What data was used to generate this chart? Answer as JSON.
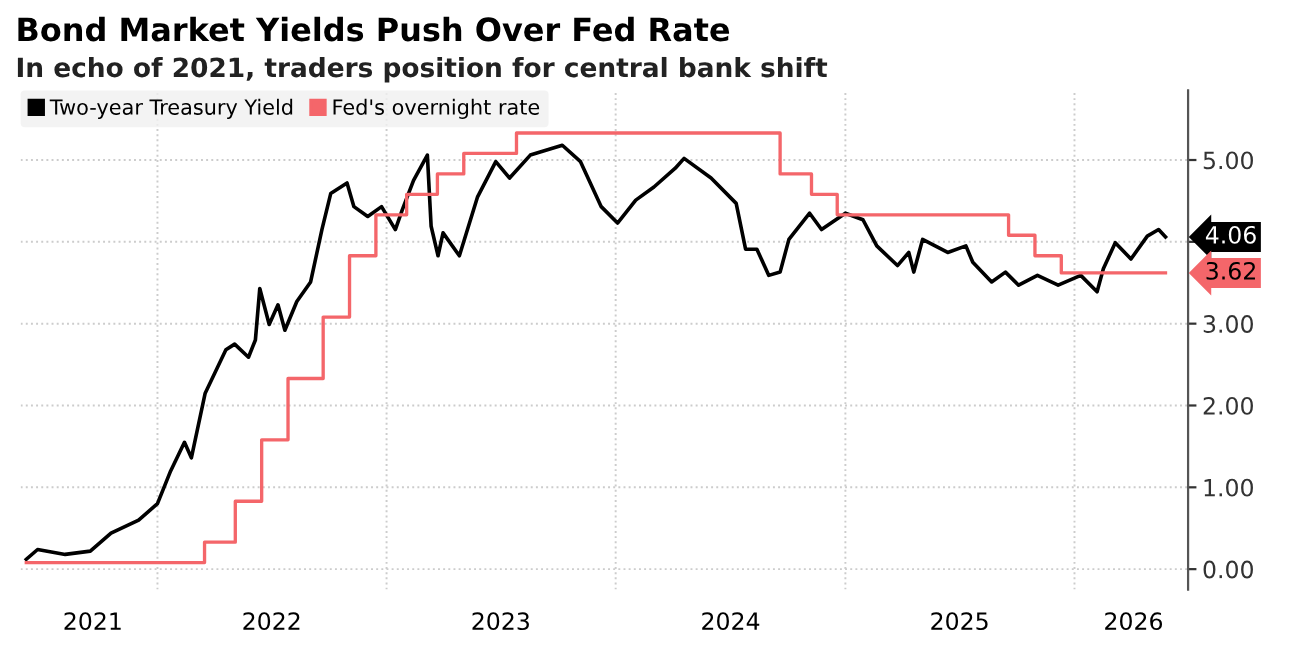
{
  "chart_data": {
    "type": "line",
    "title": "Bond Market Yields Push Over Fed Rate",
    "subtitle": "In echo of 2021, traders position for central bank shift",
    "legend": "top left",
    "grid": true,
    "line_style": "solid",
    "marker": "none",
    "xlim": [
      "2021-05-28",
      "2026-07-01"
    ],
    "xticks": [
      {
        "value": "2021-09-20",
        "label": "2021"
      },
      {
        "value": "2022-01-01",
        "label": null
      },
      {
        "value": "2022-07-02",
        "label": "2022"
      },
      {
        "value": "2023-01-01",
        "label": null
      },
      {
        "value": "2023-07-02",
        "label": "2023"
      },
      {
        "value": "2024-01-01",
        "label": null
      },
      {
        "value": "2024-07-02",
        "label": "2024"
      },
      {
        "value": "2025-01-01",
        "label": null
      },
      {
        "value": "2025-07-02",
        "label": "2025"
      },
      {
        "value": "2026-01-01",
        "label": null
      },
      {
        "value": "2026-04-05",
        "label": "2026"
      }
    ],
    "ylim": [
      -0.25,
      5.85
    ],
    "yticks": [
      {
        "value": 0,
        "label": "0.00"
      },
      {
        "value": 1,
        "label": "1.00"
      },
      {
        "value": 2,
        "label": "2.00"
      },
      {
        "value": 3,
        "label": "3.00"
      },
      {
        "value": 4,
        "label": null
      },
      {
        "value": 5,
        "label": "5.00"
      }
    ],
    "series": [
      {
        "name": "Two-year Treasury Yield",
        "color": "#000000",
        "x": [
          "2021-06-06",
          "2021-06-24",
          "2021-08-07",
          "2021-09-16",
          "2021-10-19",
          "2021-12-02",
          "2022-01-01",
          "2022-01-22",
          "2022-02-13",
          "2022-02-24",
          "2022-03-18",
          "2022-04-20",
          "2022-05-04",
          "2022-05-26",
          "2022-06-06",
          "2022-06-13",
          "2022-06-28",
          "2022-07-12",
          "2022-07-23",
          "2022-08-11",
          "2022-09-02",
          "2022-09-20",
          "2022-10-04",
          "2022-10-30",
          "2022-11-10",
          "2022-12-02",
          "2022-12-24",
          "2023-01-15",
          "2023-01-26",
          "2023-02-13",
          "2023-03-07",
          "2023-03-13",
          "2023-03-24",
          "2023-04-01",
          "2023-04-27",
          "2023-05-26",
          "2023-06-24",
          "2023-07-16",
          "2023-08-18",
          "2023-10-08",
          "2023-11-06",
          "2023-12-09",
          "2024-01-04",
          "2024-02-02",
          "2024-03-02",
          "2024-04-05",
          "2024-04-19",
          "2024-06-01",
          "2024-07-11",
          "2024-07-26",
          "2024-08-13",
          "2024-09-01",
          "2024-09-19",
          "2024-10-03",
          "2024-11-05",
          "2024-11-24",
          "2025-01-01",
          "2025-01-29",
          "2025-02-20",
          "2025-03-25",
          "2025-04-12",
          "2025-04-20",
          "2025-05-04",
          "2025-06-13",
          "2025-07-12",
          "2025-07-23",
          "2025-08-22",
          "2025-09-13",
          "2025-10-04",
          "2025-11-03",
          "2025-12-06",
          "2026-01-11",
          "2026-02-06",
          "2026-02-16",
          "2026-03-07",
          "2026-04-01",
          "2026-04-27",
          "2026-05-15",
          "2026-05-26"
        ],
        "values": [
          0.12,
          0.24,
          0.18,
          0.22,
          0.44,
          0.6,
          0.8,
          1.2,
          1.55,
          1.36,
          2.15,
          2.68,
          2.75,
          2.59,
          2.8,
          3.43,
          2.99,
          3.23,
          2.92,
          3.27,
          3.51,
          4.15,
          4.59,
          4.72,
          4.43,
          4.31,
          4.43,
          4.15,
          4.39,
          4.75,
          5.06,
          4.19,
          3.83,
          4.11,
          3.83,
          4.55,
          4.98,
          4.78,
          5.06,
          5.18,
          4.98,
          4.43,
          4.23,
          4.51,
          4.67,
          4.9,
          5.02,
          4.78,
          4.47,
          3.91,
          3.91,
          3.59,
          3.63,
          4.03,
          4.35,
          4.15,
          4.35,
          4.27,
          3.95,
          3.71,
          3.87,
          3.63,
          4.03,
          3.87,
          3.95,
          3.75,
          3.51,
          3.63,
          3.47,
          3.59,
          3.47,
          3.59,
          3.39,
          3.67,
          3.99,
          3.79,
          4.07,
          4.15,
          4.06
        ],
        "value_labels": [
          null,
          null,
          null,
          null,
          null,
          null,
          null,
          null,
          null,
          null,
          null,
          null,
          null,
          null,
          null,
          null,
          null,
          null,
          null,
          null,
          null,
          null,
          null,
          null,
          null,
          null,
          null,
          null,
          null,
          null,
          null,
          null,
          null,
          null,
          null,
          null,
          null,
          null,
          null,
          null,
          null,
          null,
          null,
          null,
          null,
          null,
          null,
          null,
          null,
          null,
          null,
          null,
          null,
          null,
          null,
          null,
          null,
          null,
          null,
          null,
          null,
          null,
          null,
          null,
          null,
          null,
          null,
          null,
          null,
          null,
          null,
          null,
          null,
          null,
          null,
          null,
          null,
          null,
          "4.06"
        ]
      },
      {
        "name": "Fed's overnight rate",
        "type": "step",
        "color": "#f4666a",
        "x": [
          "2021-06-06",
          "2022-03-17",
          "2022-05-05",
          "2022-06-16",
          "2022-07-28",
          "2022-09-22",
          "2022-11-03",
          "2022-12-15",
          "2023-02-02",
          "2023-03-23",
          "2023-05-04",
          "2023-07-27",
          "2024-09-19",
          "2024-11-08",
          "2024-12-19",
          "2025-09-18",
          "2025-10-30",
          "2025-12-11",
          "2026-05-26"
        ],
        "values": [
          0.08,
          0.33,
          0.83,
          1.58,
          2.33,
          3.08,
          3.83,
          4.33,
          4.58,
          4.83,
          5.08,
          5.33,
          4.83,
          4.58,
          4.33,
          4.08,
          3.83,
          3.62,
          3.62
        ],
        "value_labels": [
          null,
          null,
          null,
          null,
          null,
          null,
          null,
          null,
          null,
          null,
          null,
          null,
          null,
          null,
          null,
          null,
          null,
          null,
          "3.62"
        ]
      }
    ]
  }
}
